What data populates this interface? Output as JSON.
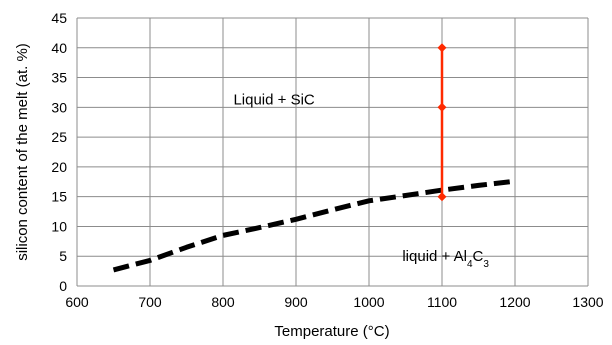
{
  "chart_data": {
    "type": "line",
    "title": "",
    "xlabel": "Temperature (°C)",
    "ylabel": "silicon content of the melt (at. %)",
    "xlim": [
      600,
      1300
    ],
    "ylim": [
      0,
      45
    ],
    "xticks": [
      600,
      700,
      800,
      900,
      1000,
      1100,
      1200,
      1300
    ],
    "yticks": [
      0,
      5,
      10,
      15,
      20,
      25,
      30,
      35,
      40,
      45
    ],
    "grid": true,
    "legend": "none",
    "series": [
      {
        "style": "dashed",
        "color": "#000000",
        "x": [
          650,
          700,
          750,
          800,
          850,
          900,
          950,
          1000,
          1050,
          1100,
          1150,
          1200
        ],
        "y": [
          2.7,
          4.3,
          6.5,
          8.5,
          9.8,
          11.2,
          12.8,
          14.3,
          15.2,
          16.1,
          16.9,
          17.6
        ]
      },
      {
        "style": "solid-with-diamond-markers",
        "color": "#ff2a00",
        "x": [
          1100,
          1100,
          1100
        ],
        "y": [
          15,
          30,
          40
        ]
      }
    ],
    "annotations": [
      {
        "text_prefix": "Liquid + SiC",
        "x": 870,
        "y": 30.5
      },
      {
        "text_prefix": "liquid + Al",
        "sub1": "4",
        "mid": "C",
        "sub2": "3",
        "x": 1105,
        "y": 4.2
      }
    ]
  }
}
